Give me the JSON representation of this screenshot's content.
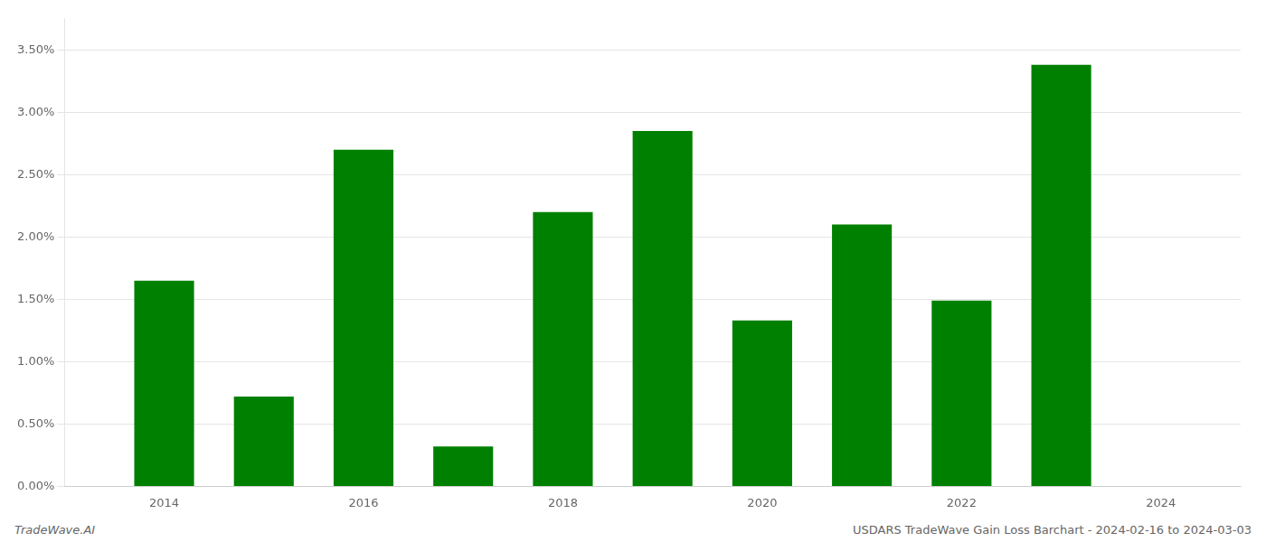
{
  "chart_data": {
    "type": "bar",
    "x": [
      2014,
      2015,
      2016,
      2017,
      2018,
      2019,
      2020,
      2021,
      2022,
      2023
    ],
    "values": [
      0.0165,
      0.0072,
      0.027,
      0.0032,
      0.022,
      0.0285,
      0.0133,
      0.021,
      0.0149,
      0.0338
    ],
    "color": "#008000",
    "xlim": [
      2013.0,
      2024.8
    ],
    "xticks": [
      2014,
      2016,
      2018,
      2020,
      2022,
      2024
    ],
    "ylim": [
      0,
      0.0375
    ],
    "yticks": [
      {
        "value": 0.0,
        "label": "0.00%"
      },
      {
        "value": 0.005,
        "label": "0.50%"
      },
      {
        "value": 0.01,
        "label": "1.00%"
      },
      {
        "value": 0.015,
        "label": "1.50%"
      },
      {
        "value": 0.02,
        "label": "2.00%"
      },
      {
        "value": 0.025,
        "label": "2.50%"
      },
      {
        "value": 0.03,
        "label": "3.00%"
      },
      {
        "value": 0.035,
        "label": "3.50%"
      }
    ],
    "grid": true,
    "annotations": [
      "TradeWave.AI",
      "USDARS TradeWave Gain Loss Barchart - 2024-02-16 to 2024-03-03"
    ]
  }
}
